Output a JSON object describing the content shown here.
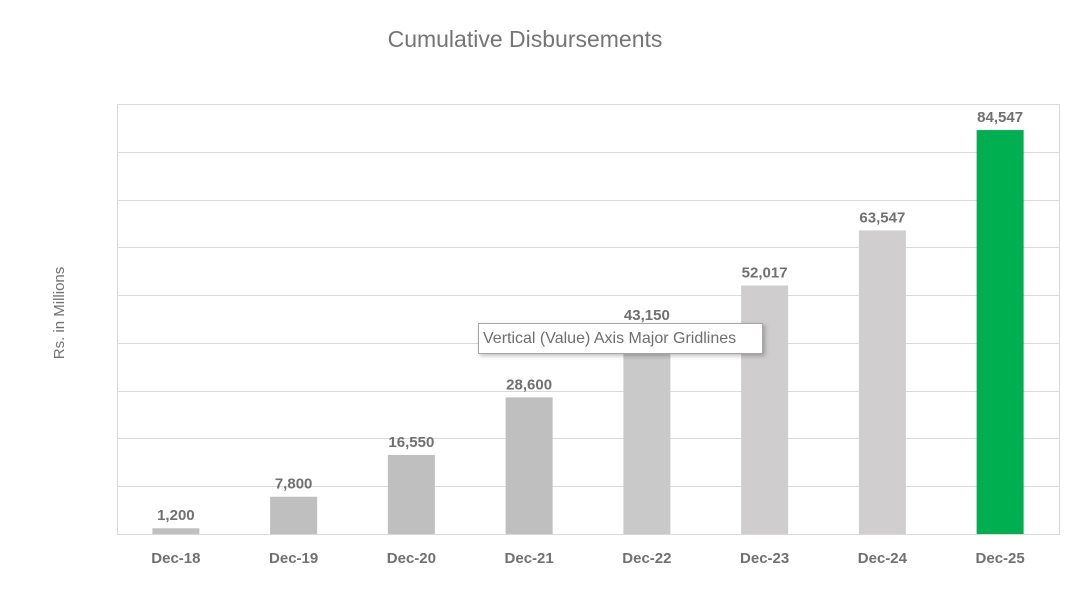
{
  "chart_data": {
    "type": "bar",
    "title": "Cumulative Disbursements",
    "y_label": "Rs. in Millions",
    "categories": [
      "Dec-18",
      "Dec-19",
      "Dec-20",
      "Dec-21",
      "Dec-22",
      "Dec-23",
      "Dec-24",
      "Dec-25"
    ],
    "values": [
      1200,
      7800,
      16550,
      28600,
      43150,
      52017,
      63547,
      84547
    ],
    "value_labels": [
      "1,200",
      "7,800",
      "16,550",
      "28,600",
      "43,150",
      "52,017",
      "63,547",
      "84,547"
    ],
    "colors": [
      "#bfbfbf",
      "#bfbfbf",
      "#bfbfbf",
      "#bfbfbf",
      "#c9c9c9",
      "#cfcdcd",
      "#d0cece",
      "#00b050"
    ],
    "ylim": [
      0,
      90000
    ],
    "yticks": [
      0,
      10000,
      20000,
      30000,
      40000,
      50000,
      60000,
      70000,
      80000,
      90000
    ],
    "grid": true,
    "tooltip": "Vertical (Value) Axis Major Gridlines"
  }
}
